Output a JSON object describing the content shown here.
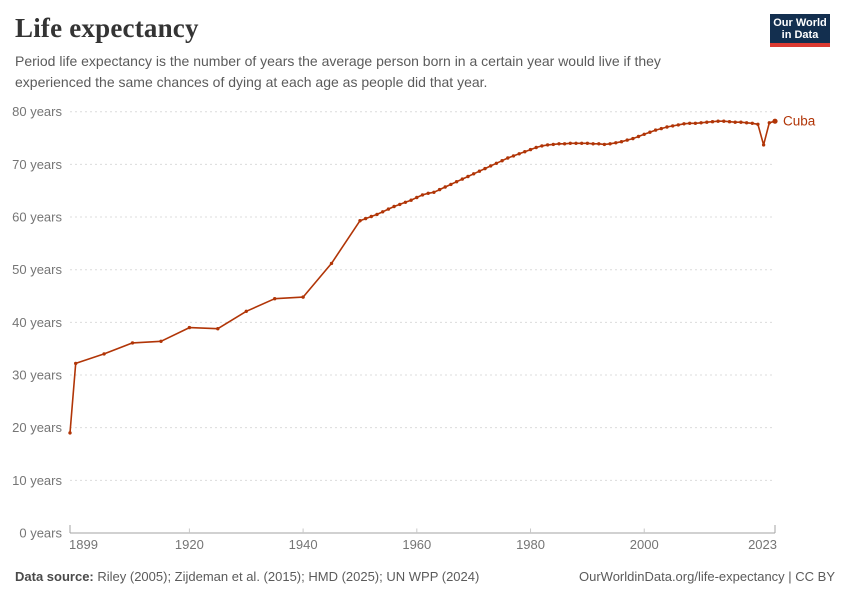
{
  "header": {
    "title": "Life expectancy",
    "subtitle": "Period life expectancy is the number of years the average person born in a certain year would live if they\nexperienced the same chances of dying at each age as people did that year.",
    "logo": {
      "line1": "Our World",
      "line2": "in Data",
      "bg_color": "#132f4f",
      "accent_color": "#dc3a31"
    }
  },
  "footer": {
    "source_label": "Data source:",
    "source_text": " Riley (2005); Zijdeman et al. (2015); HMD (2025); UN WPP (2024)",
    "link_text": "OurWorldinData.org/life-expectancy | CC BY"
  },
  "chart_data": {
    "type": "line",
    "title": "Life expectancy",
    "subtitle": "Period life expectancy is the number of years the average person born in a certain year would live if they experienced the same chances of dying at each age as people did that year.",
    "xlabel": "",
    "ylabel": "",
    "xlim": [
      1899,
      2023
    ],
    "ylim": [
      0,
      80
    ],
    "xticks": [
      1899,
      1920,
      1940,
      1960,
      1980,
      2000,
      2023
    ],
    "yticks": [
      0,
      10,
      20,
      30,
      40,
      50,
      60,
      70,
      80
    ],
    "ytick_suffix": " years",
    "grid": "horizontal-dashed",
    "legend_position": "end-of-line",
    "end_label": "Cuba",
    "colors": {
      "line": "#b13507",
      "grid": "#dcdcdc",
      "axis": "#a3a3a3",
      "tick": "#c8c8c8",
      "tick_label": "#757575"
    },
    "series": [
      {
        "name": "Cuba",
        "color": "#b13507",
        "points": [
          [
            1899,
            19.0
          ],
          [
            1900,
            32.2
          ],
          [
            1905,
            34.0
          ],
          [
            1910,
            36.1
          ],
          [
            1915,
            36.4
          ],
          [
            1920,
            39.0
          ],
          [
            1925,
            38.8
          ],
          [
            1930,
            42.1
          ],
          [
            1935,
            44.5
          ],
          [
            1940,
            44.8
          ],
          [
            1945,
            51.2
          ],
          [
            1950,
            59.3
          ],
          [
            1951,
            59.7
          ],
          [
            1952,
            60.1
          ],
          [
            1953,
            60.5
          ],
          [
            1954,
            61.0
          ],
          [
            1955,
            61.5
          ],
          [
            1956,
            62.0
          ],
          [
            1957,
            62.4
          ],
          [
            1958,
            62.8
          ],
          [
            1959,
            63.2
          ],
          [
            1960,
            63.7
          ],
          [
            1961,
            64.2
          ],
          [
            1962,
            64.5
          ],
          [
            1963,
            64.7
          ],
          [
            1964,
            65.2
          ],
          [
            1965,
            65.7
          ],
          [
            1966,
            66.2
          ],
          [
            1967,
            66.7
          ],
          [
            1968,
            67.2
          ],
          [
            1969,
            67.7
          ],
          [
            1970,
            68.2
          ],
          [
            1971,
            68.7
          ],
          [
            1972,
            69.2
          ],
          [
            1973,
            69.7
          ],
          [
            1974,
            70.2
          ],
          [
            1975,
            70.7
          ],
          [
            1976,
            71.2
          ],
          [
            1977,
            71.6
          ],
          [
            1978,
            72.0
          ],
          [
            1979,
            72.4
          ],
          [
            1980,
            72.8
          ],
          [
            1981,
            73.2
          ],
          [
            1982,
            73.5
          ],
          [
            1983,
            73.7
          ],
          [
            1984,
            73.8
          ],
          [
            1985,
            73.9
          ],
          [
            1986,
            73.9
          ],
          [
            1987,
            74.0
          ],
          [
            1988,
            74.0
          ],
          [
            1989,
            74.0
          ],
          [
            1990,
            74.0
          ],
          [
            1991,
            73.9
          ],
          [
            1992,
            73.9
          ],
          [
            1993,
            73.8
          ],
          [
            1994,
            73.9
          ],
          [
            1995,
            74.1
          ],
          [
            1996,
            74.3
          ],
          [
            1997,
            74.6
          ],
          [
            1998,
            74.9
          ],
          [
            1999,
            75.3
          ],
          [
            2000,
            75.7
          ],
          [
            2001,
            76.1
          ],
          [
            2002,
            76.5
          ],
          [
            2003,
            76.8
          ],
          [
            2004,
            77.1
          ],
          [
            2005,
            77.3
          ],
          [
            2006,
            77.5
          ],
          [
            2007,
            77.7
          ],
          [
            2008,
            77.8
          ],
          [
            2009,
            77.8
          ],
          [
            2010,
            77.9
          ],
          [
            2011,
            78.0
          ],
          [
            2012,
            78.1
          ],
          [
            2013,
            78.2
          ],
          [
            2014,
            78.2
          ],
          [
            2015,
            78.1
          ],
          [
            2016,
            78.0
          ],
          [
            2017,
            78.0
          ],
          [
            2018,
            77.9
          ],
          [
            2019,
            77.8
          ],
          [
            2020,
            77.6
          ],
          [
            2021,
            73.7
          ],
          [
            2022,
            77.9
          ],
          [
            2023,
            78.2
          ]
        ]
      }
    ]
  }
}
